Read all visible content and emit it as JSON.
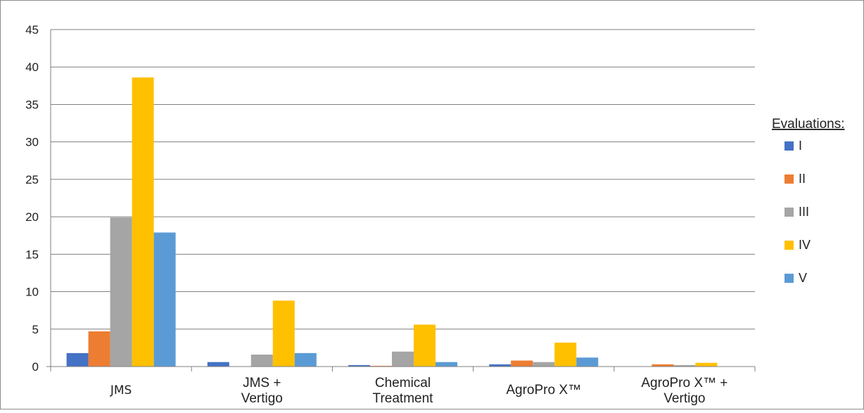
{
  "chart_data": {
    "type": "bar",
    "title": "",
    "xlabel": "",
    "ylabel": "",
    "ylim": [
      0,
      45
    ],
    "yticks": [
      0,
      5,
      10,
      15,
      20,
      25,
      30,
      35,
      40,
      45
    ],
    "grid": true,
    "categories": [
      [
        "JMS"
      ],
      [
        "JMS +",
        "Vertigo"
      ],
      [
        "Chemical",
        "Treatment"
      ],
      [
        "AgroPro X™"
      ],
      [
        "AgroPro X™ +",
        "Vertigo"
      ]
    ],
    "legend": {
      "title": "Evaluations:",
      "position": "right"
    },
    "series": [
      {
        "name": "I",
        "color": "#4472C4",
        "values": [
          1.8,
          0.6,
          0.2,
          0.3,
          0
        ]
      },
      {
        "name": "II",
        "color": "#ED7D31",
        "values": [
          4.7,
          0,
          0.1,
          0.8,
          0.3
        ]
      },
      {
        "name": "III",
        "color": "#A5A5A5",
        "values": [
          19.9,
          1.6,
          2.0,
          0.6,
          0.2
        ]
      },
      {
        "name": "IV",
        "color": "#FFC000",
        "values": [
          38.6,
          8.8,
          5.6,
          3.2,
          0.5
        ]
      },
      {
        "name": "V",
        "color": "#5B9BD5",
        "values": [
          17.9,
          1.8,
          0.6,
          1.2,
          0
        ]
      }
    ]
  }
}
